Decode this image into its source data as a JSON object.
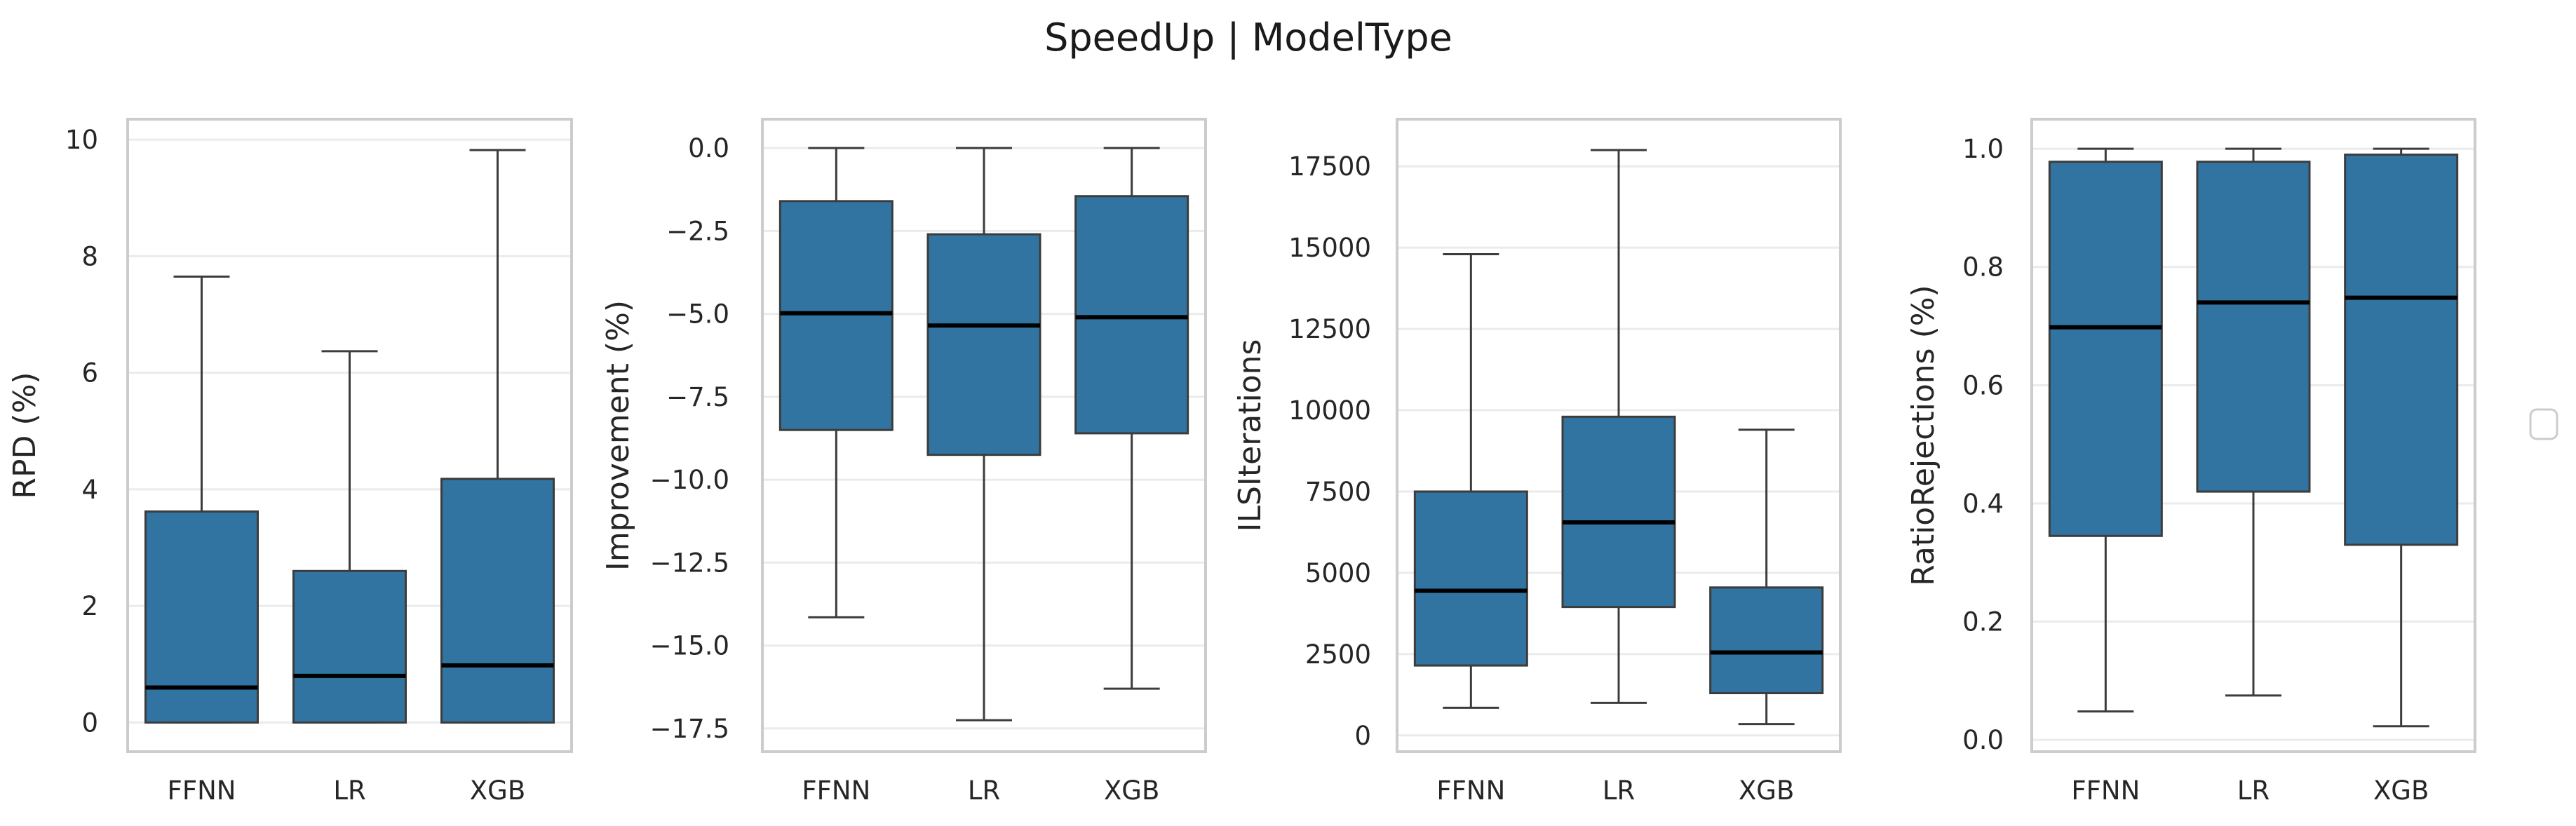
{
  "figure": {
    "title": "SpeedUp | ModelType",
    "colors": {
      "box_fill": "#3274a1",
      "box_edge": "#3c3c3c",
      "median": "#000000",
      "whisker": "#3c3c3c",
      "grid": "#ebebeb",
      "frame": "#cccccc"
    }
  },
  "chart_data": [
    {
      "type": "box",
      "ylabel": "RPD (%)",
      "categories": [
        "FFNN",
        "LR",
        "XGB"
      ],
      "yticks": [
        0,
        2,
        4,
        6,
        8,
        10
      ],
      "ylim": [
        -0.5,
        10.35
      ],
      "grid": true,
      "boxes": [
        {
          "category": "FFNN",
          "whisker_low": 0,
          "q1": 0,
          "median": 0.6,
          "q3": 3.62,
          "whisker_high": 7.65
        },
        {
          "category": "LR",
          "whisker_low": 0,
          "q1": 0,
          "median": 0.8,
          "q3": 2.6,
          "whisker_high": 6.37
        },
        {
          "category": "XGB",
          "whisker_low": 0,
          "q1": 0,
          "median": 0.98,
          "q3": 4.18,
          "whisker_high": 9.82
        }
      ]
    },
    {
      "type": "box",
      "ylabel": "Improvement (%)",
      "categories": [
        "FFNN",
        "LR",
        "XGB"
      ],
      "yticks": [
        0.0,
        -2.5,
        -5.0,
        -7.5,
        -10.0,
        -12.5,
        -15.0,
        -17.5
      ],
      "ytick_labels": [
        "0.0",
        "−2.5",
        "−5.0",
        "−7.5",
        "−10.0",
        "−12.5",
        "−15.0",
        "−17.5"
      ],
      "ylim": [
        -18.2,
        0.87
      ],
      "grid": true,
      "boxes": [
        {
          "category": "FFNN",
          "whisker_low": -14.15,
          "q1": -8.5,
          "median": -4.98,
          "q3": -1.6,
          "whisker_high": 0
        },
        {
          "category": "LR",
          "whisker_low": -17.25,
          "q1": -9.25,
          "median": -5.35,
          "q3": -2.6,
          "whisker_high": 0
        },
        {
          "category": "XGB",
          "whisker_low": -16.3,
          "q1": -8.6,
          "median": -5.1,
          "q3": -1.45,
          "whisker_high": 0
        }
      ]
    },
    {
      "type": "box",
      "ylabel": "ILSIterations",
      "categories": [
        "FFNN",
        "LR",
        "XGB"
      ],
      "yticks": [
        0,
        2500,
        5000,
        7500,
        10000,
        12500,
        15000,
        17500
      ],
      "ylim": [
        -500,
        18950
      ],
      "grid": true,
      "boxes": [
        {
          "category": "FFNN",
          "whisker_low": 850,
          "q1": 2150,
          "median": 4450,
          "q3": 7500,
          "whisker_high": 14800
        },
        {
          "category": "LR",
          "whisker_low": 1000,
          "q1": 3950,
          "median": 6550,
          "q3": 9800,
          "whisker_high": 18000
        },
        {
          "category": "XGB",
          "whisker_low": 350,
          "q1": 1300,
          "median": 2550,
          "q3": 4550,
          "whisker_high": 9400
        }
      ]
    },
    {
      "type": "box",
      "ylabel": "RatioRejections (%)",
      "categories": [
        "FFNN",
        "LR",
        "XGB"
      ],
      "yticks": [
        0.0,
        0.2,
        0.4,
        0.6,
        0.8,
        1.0
      ],
      "ytick_labels": [
        "0.0",
        "0.2",
        "0.4",
        "0.6",
        "0.8",
        "1.0"
      ],
      "ylim": [
        -0.02,
        1.05
      ],
      "grid": true,
      "boxes": [
        {
          "category": "FFNN",
          "whisker_low": 0.048,
          "q1": 0.345,
          "median": 0.698,
          "q3": 0.978,
          "whisker_high": 1.0
        },
        {
          "category": "LR",
          "whisker_low": 0.075,
          "q1": 0.42,
          "median": 0.74,
          "q3": 0.978,
          "whisker_high": 1.0
        },
        {
          "category": "XGB",
          "whisker_low": 0.023,
          "q1": 0.33,
          "median": 0.748,
          "q3": 0.99,
          "whisker_high": 1.0
        }
      ]
    }
  ]
}
